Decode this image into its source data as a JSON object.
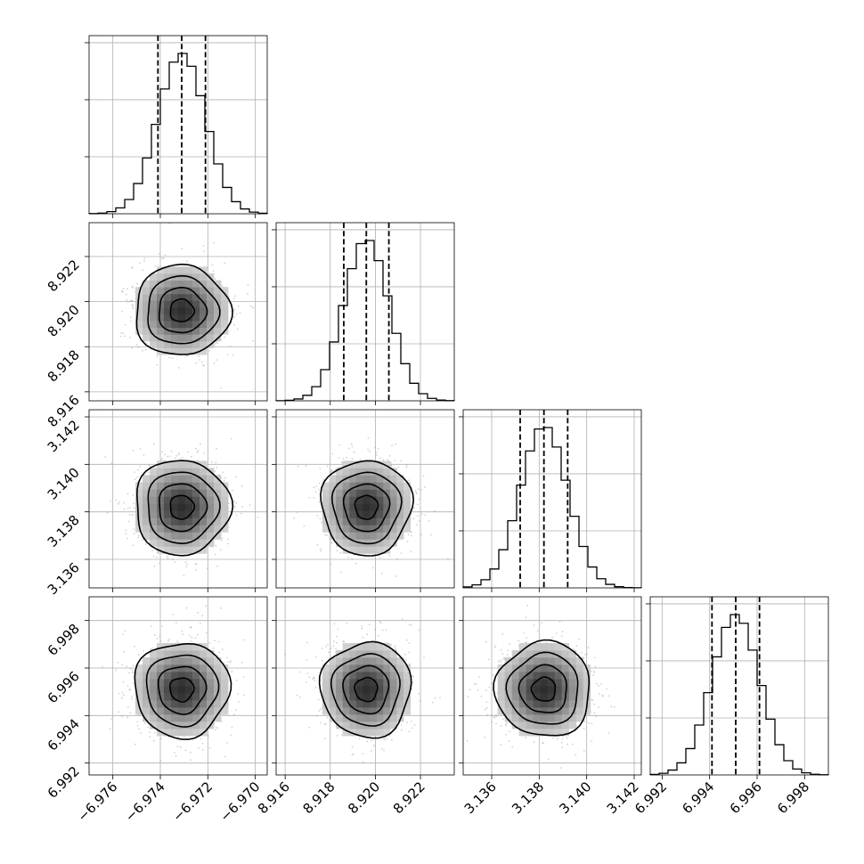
{
  "chart_data": {
    "type": "corner",
    "parameters": [
      {
        "range": [
          -6.977,
          -6.9695
        ],
        "median": -6.9731,
        "q16": -6.9741,
        "q84": -6.9721,
        "sigma": 0.001,
        "ticks": [
          -6.976,
          -6.974,
          -6.972,
          -6.97
        ],
        "tick_labels": [
          "−6.976",
          "−6.974",
          "−6.972",
          "−6.970"
        ]
      },
      {
        "range": [
          8.9156,
          8.9235
        ],
        "median": 8.9196,
        "q16": 8.9186,
        "q84": 8.9206,
        "sigma": 0.001,
        "ticks": [
          8.916,
          8.918,
          8.92,
          8.922
        ],
        "tick_labels": [
          "8.916",
          "8.918",
          "8.920",
          "8.922"
        ]
      },
      {
        "range": [
          3.1348,
          3.1423
        ],
        "median": 3.1382,
        "q16": 3.1372,
        "q84": 3.1392,
        "sigma": 0.001,
        "ticks": [
          3.136,
          3.138,
          3.14,
          3.142
        ],
        "tick_labels": [
          "3.136",
          "3.138",
          "3.140",
          "3.142"
        ]
      },
      {
        "range": [
          6.9915,
          6.999
        ],
        "median": 6.9951,
        "q16": 6.9941,
        "q84": 6.9961,
        "sigma": 0.001,
        "ticks": [
          6.992,
          6.994,
          6.996,
          6.998
        ],
        "tick_labels": [
          "6.992",
          "6.994",
          "6.996",
          "6.998"
        ]
      }
    ],
    "quantiles": [
      0.16,
      0.5,
      0.84
    ],
    "contour_levels_sigma": [
      0.5,
      1.0,
      1.5,
      2.0
    ],
    "histogram_bins": 20,
    "grid": true
  }
}
